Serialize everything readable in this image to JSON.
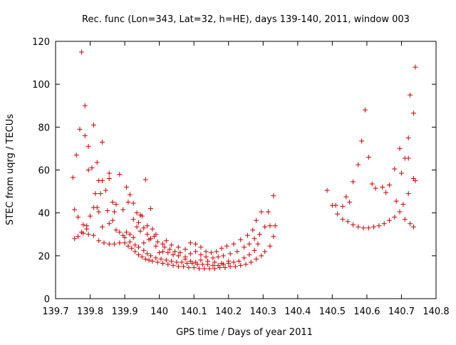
{
  "chart_data": {
    "type": "scatter",
    "title": "Rec. func (Lon=343, Lat=32, h=HE), days 139-140, 2011, window 003",
    "xlabel": "GPS time / Days of year 2011",
    "ylabel": "STEC from uqrg / TECUs",
    "xlim": [
      139.7,
      140.8
    ],
    "ylim": [
      0,
      120
    ],
    "xticks": [
      "139.7",
      "139.8",
      "139.9",
      "140",
      "140.1",
      "140.2",
      "140.3",
      "140.4",
      "140.5",
      "140.6",
      "140.7",
      "140.8"
    ],
    "yticks": [
      "0",
      "20",
      "40",
      "60",
      "80",
      "100",
      "120"
    ],
    "grid": false,
    "legend": "none",
    "marker": "plus",
    "color": "#cc0000",
    "series": [
      {
        "points": [
          [
            139.75,
            56.5
          ],
          [
            139.76,
            67.0
          ],
          [
            139.77,
            79.0
          ],
          [
            139.775,
            115.0
          ],
          [
            139.785,
            90.0
          ],
          [
            139.785,
            76.0
          ],
          [
            139.795,
            71.0
          ],
          [
            139.795,
            60.0
          ],
          [
            139.805,
            61.0
          ],
          [
            139.81,
            81.0
          ],
          [
            139.815,
            49.0
          ],
          [
            139.82,
            63.5
          ],
          [
            139.825,
            55.0
          ],
          [
            139.83,
            49.0
          ],
          [
            139.835,
            73.0
          ],
          [
            139.835,
            55.0
          ],
          [
            139.845,
            50.5
          ],
          [
            139.855,
            56.0
          ],
          [
            139.855,
            58.5
          ],
          [
            139.865,
            45.0
          ],
          [
            139.87,
            40.5
          ],
          [
            139.875,
            44.0
          ],
          [
            139.885,
            58.0
          ],
          [
            139.895,
            41.5
          ],
          [
            139.905,
            52.0
          ],
          [
            139.91,
            45.0
          ],
          [
            139.915,
            48.5
          ],
          [
            139.925,
            44.5
          ],
          [
            139.935,
            40.0
          ],
          [
            139.945,
            39.0
          ],
          [
            139.96,
            55.5
          ],
          [
            139.975,
            42.0
          ],
          [
            139.99,
            30.0
          ],
          [
            140.01,
            25.5
          ],
          [
            140.02,
            27.0
          ],
          [
            140.035,
            25.0
          ],
          [
            140.055,
            24.0
          ],
          [
            140.075,
            23.0
          ],
          [
            140.09,
            26.0
          ],
          [
            140.105,
            25.5
          ],
          [
            140.12,
            24.0
          ],
          [
            140.135,
            22.0
          ],
          [
            140.15,
            21.5
          ],
          [
            140.165,
            22.0
          ],
          [
            140.18,
            23.5
          ],
          [
            140.195,
            24.5
          ],
          [
            140.215,
            25.5
          ],
          [
            140.235,
            27.5
          ],
          [
            140.255,
            29.5
          ],
          [
            140.27,
            32.0
          ],
          [
            140.28,
            36.5
          ],
          [
            140.295,
            40.5
          ],
          [
            140.315,
            40.5
          ],
          [
            140.33,
            48.0
          ],
          [
            140.485,
            50.5
          ],
          [
            140.51,
            43.5
          ],
          [
            140.53,
            43.0
          ],
          [
            140.54,
            47.5
          ],
          [
            140.55,
            45.0
          ],
          [
            140.56,
            54.5
          ],
          [
            140.575,
            62.5
          ],
          [
            140.585,
            73.5
          ],
          [
            140.595,
            88.0
          ],
          [
            140.605,
            66.0
          ],
          [
            140.615,
            53.5
          ],
          [
            140.625,
            51.5
          ],
          [
            140.645,
            52.0
          ],
          [
            140.655,
            49.5
          ],
          [
            140.665,
            53.0
          ],
          [
            140.68,
            60.5
          ],
          [
            140.695,
            70.0
          ],
          [
            140.7,
            58.5
          ],
          [
            140.71,
            65.5
          ],
          [
            140.72,
            75.0
          ],
          [
            140.72,
            65.5
          ],
          [
            140.725,
            95.0
          ],
          [
            140.74,
            108.0
          ],
          [
            140.735,
            86.5
          ],
          [
            140.735,
            56.0
          ],
          [
            140.74,
            55.0
          ],
          [
            139.755,
            41.5
          ],
          [
            139.765,
            38.0
          ],
          [
            139.775,
            31.0
          ],
          [
            139.78,
            34.5
          ],
          [
            139.79,
            34.0
          ],
          [
            139.79,
            32.5
          ],
          [
            139.8,
            38.5
          ],
          [
            139.81,
            42.5
          ],
          [
            139.82,
            42.5
          ],
          [
            139.825,
            40.5
          ],
          [
            139.835,
            33.5
          ],
          [
            139.85,
            41.0
          ],
          [
            139.855,
            35.0
          ],
          [
            139.865,
            36.5
          ],
          [
            139.875,
            32.0
          ],
          [
            139.885,
            31.0
          ],
          [
            139.895,
            29.5
          ],
          [
            139.905,
            31.0
          ],
          [
            139.915,
            30.0
          ],
          [
            139.925,
            28.5
          ],
          [
            139.935,
            33.5
          ],
          [
            139.945,
            31.5
          ],
          [
            139.955,
            33.0
          ],
          [
            139.965,
            30.0
          ],
          [
            139.975,
            28.0
          ],
          [
            139.99,
            24.5
          ],
          [
            140.01,
            22.0
          ],
          [
            140.025,
            21.5
          ],
          [
            140.04,
            20.5
          ],
          [
            140.055,
            20.0
          ],
          [
            140.075,
            19.5
          ],
          [
            140.09,
            21.0
          ],
          [
            140.105,
            22.0
          ],
          [
            140.12,
            20.5
          ],
          [
            140.135,
            19.5
          ],
          [
            140.155,
            19.0
          ],
          [
            140.17,
            19.5
          ],
          [
            140.185,
            20.0
          ],
          [
            140.205,
            21.0
          ],
          [
            140.225,
            22.0
          ],
          [
            140.245,
            24.0
          ],
          [
            140.26,
            25.5
          ],
          [
            140.275,
            28.0
          ],
          [
            140.29,
            30.0
          ],
          [
            140.305,
            33.5
          ],
          [
            140.32,
            34.0
          ],
          [
            140.335,
            34.0
          ],
          [
            140.5,
            43.5
          ],
          [
            140.515,
            39.5
          ],
          [
            140.53,
            37.0
          ],
          [
            140.545,
            36.0
          ],
          [
            140.56,
            34.5
          ],
          [
            140.575,
            33.5
          ],
          [
            140.59,
            33.0
          ],
          [
            140.605,
            33.0
          ],
          [
            140.62,
            33.5
          ],
          [
            140.635,
            34.0
          ],
          [
            140.65,
            35.0
          ],
          [
            140.665,
            36.5
          ],
          [
            140.68,
            38.0
          ],
          [
            140.685,
            45.5
          ],
          [
            140.695,
            40.5
          ],
          [
            140.705,
            44.0
          ],
          [
            140.71,
            37.0
          ],
          [
            140.72,
            49.0
          ],
          [
            140.725,
            35.0
          ],
          [
            140.735,
            33.5
          ],
          [
            139.755,
            28.0
          ],
          [
            139.765,
            29.0
          ],
          [
            139.78,
            30.5
          ],
          [
            139.795,
            30.0
          ],
          [
            139.81,
            29.5
          ],
          [
            139.825,
            27.0
          ],
          [
            139.84,
            26.0
          ],
          [
            139.855,
            25.5
          ],
          [
            139.87,
            25.5
          ],
          [
            139.885,
            26.0
          ],
          [
            139.9,
            26.0
          ],
          [
            139.91,
            24.5
          ],
          [
            139.92,
            23.5
          ],
          [
            139.93,
            22.0
          ],
          [
            139.94,
            20.5
          ],
          [
            139.95,
            19.5
          ],
          [
            139.96,
            18.5
          ],
          [
            139.97,
            18.0
          ],
          [
            139.98,
            17.5
          ],
          [
            139.995,
            17.0
          ],
          [
            140.01,
            16.5
          ],
          [
            140.025,
            16.0
          ],
          [
            140.04,
            15.5
          ],
          [
            140.055,
            15.0
          ],
          [
            140.07,
            15.0
          ],
          [
            140.085,
            14.5
          ],
          [
            140.1,
            14.5
          ],
          [
            140.115,
            14.0
          ],
          [
            140.13,
            14.0
          ],
          [
            140.145,
            14.0
          ],
          [
            140.16,
            14.0
          ],
          [
            140.175,
            14.5
          ],
          [
            140.19,
            14.5
          ],
          [
            140.205,
            15.0
          ],
          [
            140.22,
            15.0
          ],
          [
            140.235,
            15.5
          ],
          [
            140.25,
            16.0
          ],
          [
            140.265,
            17.0
          ],
          [
            140.28,
            18.5
          ],
          [
            140.295,
            20.0
          ],
          [
            140.305,
            22.0
          ],
          [
            140.32,
            24.5
          ],
          [
            140.33,
            29.0
          ],
          [
            139.9,
            28.5
          ],
          [
            139.915,
            26.5
          ],
          [
            139.93,
            25.0
          ],
          [
            139.94,
            24.0
          ],
          [
            139.955,
            22.5
          ],
          [
            139.965,
            21.0
          ],
          [
            139.975,
            20.0
          ],
          [
            139.99,
            19.0
          ],
          [
            140.005,
            18.5
          ],
          [
            140.02,
            18.0
          ],
          [
            140.035,
            17.5
          ],
          [
            140.05,
            17.0
          ],
          [
            140.065,
            17.0
          ],
          [
            140.08,
            16.5
          ],
          [
            140.095,
            16.5
          ],
          [
            140.11,
            16.0
          ],
          [
            140.125,
            16.0
          ],
          [
            140.14,
            16.0
          ],
          [
            140.155,
            15.5
          ],
          [
            140.17,
            15.5
          ],
          [
            140.185,
            16.0
          ],
          [
            140.2,
            16.5
          ],
          [
            140.215,
            17.0
          ],
          [
            140.23,
            17.5
          ],
          [
            140.245,
            19.0
          ],
          [
            140.26,
            20.5
          ],
          [
            140.275,
            22.5
          ],
          [
            140.285,
            25.5
          ],
          [
            139.925,
            37.0
          ],
          [
            139.94,
            35.5
          ],
          [
            139.95,
            38.5
          ],
          [
            139.955,
            26.0
          ],
          [
            139.965,
            34.0
          ],
          [
            139.97,
            27.5
          ],
          [
            139.98,
            32.5
          ],
          [
            139.985,
            29.0
          ],
          [
            139.995,
            26.5
          ],
          [
            140.0,
            21.5
          ],
          [
            140.015,
            24.0
          ],
          [
            140.03,
            23.0
          ],
          [
            140.045,
            22.0
          ],
          [
            140.06,
            21.5
          ],
          [
            140.075,
            18.5
          ],
          [
            140.09,
            17.5
          ],
          [
            140.105,
            17.0
          ],
          [
            140.12,
            18.0
          ],
          [
            140.14,
            17.5
          ],
          [
            140.16,
            17.0
          ],
          [
            140.18,
            16.5
          ],
          [
            140.2,
            17.5
          ]
        ]
      }
    ]
  }
}
